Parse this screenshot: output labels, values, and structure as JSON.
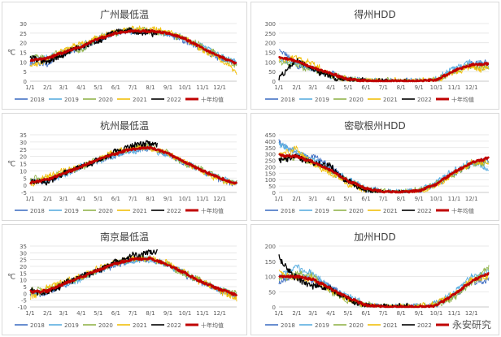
{
  "watermark": "永安研究",
  "months": [
    "1/1",
    "2/1",
    "3/1",
    "4/1",
    "5/1",
    "6/1",
    "7/1",
    "8/1",
    "9/1",
    "10/1",
    "11/1",
    "12/1"
  ],
  "series_styles": [
    {
      "name": "2018",
      "color": "#4472c4"
    },
    {
      "name": "2019",
      "color": "#5aaee0"
    },
    {
      "name": "2020",
      "color": "#92b44c"
    },
    {
      "name": "2021",
      "color": "#f2c00c"
    },
    {
      "name": "2022",
      "color": "#000000"
    },
    {
      "name": "十年均值",
      "color": "#c00000"
    }
  ],
  "chart_data": [
    {
      "type": "line",
      "title": "广州最低温",
      "ylabel": "℃",
      "ylim": [
        0,
        30
      ],
      "yticks": [
        0,
        5,
        10,
        15,
        20,
        25,
        30
      ],
      "x": [
        "1/1",
        "2/1",
        "3/1",
        "4/1",
        "5/1",
        "6/1",
        "7/1",
        "8/1",
        "9/1",
        "10/1",
        "11/1",
        "12/1",
        "12/31"
      ],
      "series": [
        {
          "name": "2018",
          "values": [
            10,
            9,
            15,
            17,
            22,
            25,
            26,
            26,
            25,
            21,
            17,
            12,
            9
          ]
        },
        {
          "name": "2019",
          "values": [
            12,
            13,
            14,
            19,
            22,
            25,
            26,
            26,
            25,
            22,
            18,
            13,
            10
          ]
        },
        {
          "name": "2020",
          "values": [
            13,
            12,
            16,
            16,
            23,
            25,
            27,
            26,
            25,
            22,
            18,
            13,
            8
          ]
        },
        {
          "name": "2021",
          "values": [
            8,
            11,
            16,
            19,
            23,
            26,
            27,
            27,
            26,
            22,
            16,
            12,
            4
          ]
        },
        {
          "name": "2022",
          "values": [
            12,
            10,
            14,
            18,
            21,
            26,
            26,
            25,
            null,
            null,
            null,
            null,
            null
          ]
        },
        {
          "name": "十年均值",
          "values": [
            11,
            12,
            15,
            18,
            22,
            25,
            26,
            26,
            25,
            22,
            17,
            13,
            9
          ]
        }
      ]
    },
    {
      "type": "line",
      "title": "得州HDD",
      "ylabel": "",
      "ylim": [
        0,
        300
      ],
      "yticks": [
        0,
        50,
        100,
        150,
        200,
        250,
        300
      ],
      "x": [
        "1/1",
        "2/1",
        "3/1",
        "4/1",
        "5/1",
        "6/1",
        "7/1",
        "8/1",
        "9/1",
        "10/1",
        "11/1",
        "12/1",
        "12/31"
      ],
      "series": [
        {
          "name": "2018",
          "values": [
            170,
            80,
            60,
            40,
            5,
            0,
            0,
            0,
            0,
            5,
            60,
            90,
            95
          ]
        },
        {
          "name": "2019",
          "values": [
            120,
            90,
            70,
            30,
            10,
            0,
            0,
            0,
            0,
            10,
            70,
            100,
            80
          ]
        },
        {
          "name": "2020",
          "values": [
            100,
            80,
            60,
            35,
            10,
            0,
            0,
            0,
            0,
            5,
            50,
            80,
            70
          ]
        },
        {
          "name": "2021",
          "values": [
            110,
            120,
            90,
            30,
            5,
            0,
            0,
            0,
            0,
            5,
            45,
            70,
            60
          ]
        },
        {
          "name": "2022",
          "values": [
            15,
            110,
            60,
            25,
            5,
            0,
            0,
            0,
            null,
            null,
            null,
            null,
            null
          ]
        },
        {
          "name": "十年均值",
          "values": [
            125,
            105,
            70,
            40,
            10,
            0,
            0,
            0,
            0,
            5,
            55,
            85,
            90
          ]
        }
      ]
    },
    {
      "type": "line",
      "title": "杭州最低温",
      "ylabel": "℃",
      "ylim": [
        -5,
        35
      ],
      "yticks": [
        -5,
        0,
        5,
        10,
        15,
        20,
        25,
        30,
        35
      ],
      "x": [
        "1/1",
        "2/1",
        "3/1",
        "4/1",
        "5/1",
        "6/1",
        "7/1",
        "8/1",
        "9/1",
        "10/1",
        "11/1",
        "12/1",
        "12/31"
      ],
      "series": [
        {
          "name": "2018",
          "values": [
            2,
            3,
            8,
            12,
            17,
            21,
            25,
            26,
            22,
            15,
            10,
            4,
            1
          ]
        },
        {
          "name": "2019",
          "values": [
            3,
            4,
            7,
            13,
            17,
            21,
            24,
            25,
            21,
            16,
            10,
            5,
            1
          ]
        },
        {
          "name": "2020",
          "values": [
            4,
            5,
            9,
            12,
            18,
            22,
            26,
            27,
            22,
            15,
            11,
            5,
            2
          ]
        },
        {
          "name": "2021",
          "values": [
            0,
            6,
            10,
            13,
            18,
            23,
            26,
            26,
            22,
            16,
            9,
            4,
            0
          ]
        },
        {
          "name": "2022",
          "values": [
            3,
            2,
            8,
            13,
            17,
            23,
            28,
            29,
            null,
            null,
            null,
            null,
            null
          ]
        },
        {
          "name": "十年均值",
          "values": [
            2,
            4,
            8,
            13,
            18,
            22,
            25,
            26,
            22,
            16,
            10,
            5,
            1
          ]
        }
      ]
    },
    {
      "type": "line",
      "title": "密歇根州HDD",
      "ylabel": "",
      "ylim": [
        0,
        450
      ],
      "yticks": [
        0,
        50,
        100,
        150,
        200,
        250,
        300,
        350,
        400,
        450
      ],
      "x": [
        "1/1",
        "2/1",
        "3/1",
        "4/1",
        "5/1",
        "6/1",
        "7/1",
        "8/1",
        "9/1",
        "10/1",
        "11/1",
        "12/1",
        "12/31"
      ],
      "series": [
        {
          "name": "2018",
          "values": [
            400,
            300,
            280,
            200,
            90,
            30,
            5,
            0,
            10,
            60,
            150,
            220,
            250
          ]
        },
        {
          "name": "2019",
          "values": [
            380,
            320,
            250,
            170,
            100,
            40,
            5,
            0,
            15,
            80,
            170,
            240,
            180
          ]
        },
        {
          "name": "2020",
          "values": [
            270,
            280,
            230,
            160,
            90,
            30,
            5,
            0,
            20,
            70,
            140,
            220,
            230
          ]
        },
        {
          "name": "2021",
          "values": [
            290,
            340,
            220,
            150,
            60,
            20,
            0,
            0,
            10,
            50,
            150,
            230,
            240
          ]
        },
        {
          "name": "2022",
          "values": [
            250,
            280,
            230,
            200,
            80,
            20,
            0,
            0,
            null,
            null,
            null,
            null,
            null
          ]
        },
        {
          "name": "十年均值",
          "values": [
            290,
            280,
            240,
            170,
            90,
            30,
            5,
            0,
            15,
            65,
            160,
            230,
            270
          ]
        }
      ]
    },
    {
      "type": "line",
      "title": "南京最低温",
      "ylabel": "℃",
      "ylim": [
        -10,
        35
      ],
      "yticks": [
        -10,
        -5,
        0,
        5,
        10,
        15,
        20,
        25,
        30,
        35
      ],
      "x": [
        "1/1",
        "2/1",
        "3/1",
        "4/1",
        "5/1",
        "6/1",
        "7/1",
        "8/1",
        "9/1",
        "10/1",
        "11/1",
        "12/1",
        "12/31"
      ],
      "series": [
        {
          "name": "2018",
          "values": [
            0,
            0,
            6,
            12,
            17,
            21,
            25,
            26,
            21,
            14,
            8,
            2,
            -2
          ]
        },
        {
          "name": "2019",
          "values": [
            1,
            1,
            6,
            11,
            17,
            22,
            24,
            25,
            21,
            15,
            8,
            3,
            -1
          ]
        },
        {
          "name": "2020",
          "values": [
            2,
            3,
            8,
            11,
            17,
            22,
            25,
            26,
            21,
            14,
            9,
            3,
            0
          ]
        },
        {
          "name": "2021",
          "values": [
            -3,
            4,
            9,
            12,
            18,
            23,
            26,
            26,
            22,
            15,
            8,
            2,
            -4
          ]
        },
        {
          "name": "2022",
          "values": [
            2,
            0,
            7,
            13,
            17,
            23,
            28,
            30,
            null,
            null,
            null,
            null,
            null
          ]
        },
        {
          "name": "十年均值",
          "values": [
            1,
            2,
            7,
            12,
            17,
            22,
            25,
            26,
            21,
            15,
            8,
            3,
            -1
          ]
        }
      ]
    },
    {
      "type": "line",
      "title": "加州HDD",
      "ylabel": "",
      "ylim": [
        0,
        200
      ],
      "yticks": [
        0,
        50,
        100,
        150,
        200
      ],
      "x": [
        "1/1",
        "2/1",
        "3/1",
        "4/1",
        "5/1",
        "6/1",
        "7/1",
        "8/1",
        "9/1",
        "10/1",
        "11/1",
        "12/1",
        "12/31"
      ],
      "series": [
        {
          "name": "2018",
          "values": [
            80,
            100,
            90,
            70,
            30,
            5,
            0,
            0,
            0,
            5,
            40,
            80,
            90
          ]
        },
        {
          "name": "2019",
          "values": [
            100,
            130,
            110,
            60,
            35,
            10,
            0,
            0,
            0,
            10,
            50,
            100,
            110
          ]
        },
        {
          "name": "2020",
          "values": [
            90,
            110,
            100,
            50,
            20,
            5,
            0,
            0,
            0,
            5,
            30,
            80,
            130
          ]
        },
        {
          "name": "2021",
          "values": [
            110,
            95,
            90,
            55,
            25,
            5,
            0,
            0,
            0,
            10,
            45,
            90,
            100
          ]
        },
        {
          "name": "2022",
          "values": [
            160,
            90,
            70,
            60,
            25,
            5,
            0,
            0,
            null,
            null,
            null,
            null,
            null
          ]
        },
        {
          "name": "十年均值",
          "values": [
            100,
            100,
            90,
            60,
            30,
            5,
            0,
            0,
            0,
            5,
            40,
            85,
            110
          ]
        }
      ]
    }
  ]
}
